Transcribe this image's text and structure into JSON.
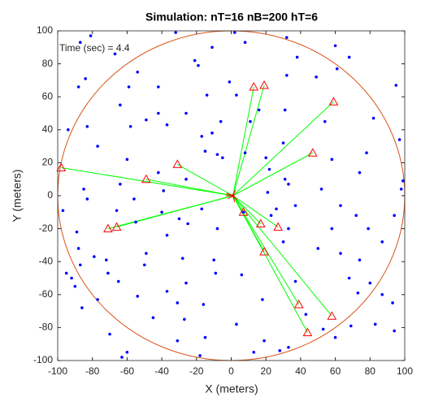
{
  "chart_data": {
    "type": "scatter",
    "title": "Simulation: nT=16  nB=200  hT=6",
    "xlabel": "X (meters)",
    "ylabel": "Y (meters)",
    "annotation": "Time (sec) = 4.4",
    "xlim": [
      -100,
      100
    ],
    "ylim": [
      -100,
      100
    ],
    "xticks": [
      -100,
      -80,
      -60,
      -40,
      -20,
      0,
      20,
      40,
      60,
      80,
      100
    ],
    "yticks": [
      -100,
      -80,
      -60,
      -40,
      -20,
      0,
      20,
      40,
      60,
      80,
      100
    ],
    "grid": false,
    "circle": {
      "radius": 100,
      "color": "#d95319"
    },
    "center": {
      "x": 1,
      "y": 0,
      "color": "#ff0000"
    },
    "link_color": "#00ff00",
    "series": [
      {
        "color": "#0000ff",
        "marker": "dot",
        "x": [
          -81,
          -87,
          -32,
          2,
          -11,
          8,
          32,
          60,
          68,
          38,
          -21,
          -19,
          -67,
          -88,
          -84,
          -54,
          -59,
          -1,
          32,
          95,
          49,
          61,
          -42,
          -14,
          3,
          31,
          -64,
          -49,
          -37,
          -42,
          -26,
          -6,
          16,
          54,
          82,
          -94,
          -83,
          -58,
          -17,
          -11,
          11,
          30,
          97,
          -77,
          -60,
          -15,
          -42,
          -8,
          -5,
          20,
          78,
          58,
          74,
          -85,
          -83,
          -64,
          -56,
          -39,
          -26,
          22,
          31,
          99,
          98,
          -97,
          -66,
          -40,
          -30,
          -17,
          26,
          37,
          52,
          72,
          94,
          63,
          -89,
          -55,
          -37,
          -25,
          -8,
          23,
          33,
          58,
          79,
          87,
          -88,
          -79,
          -72,
          -49,
          -28,
          -10,
          30,
          50,
          63,
          74,
          -95,
          -87,
          -71,
          -65,
          -50,
          -26,
          -9,
          6,
          37,
          68,
          80,
          87,
          -90,
          -86,
          -77,
          -54,
          -45,
          -37,
          -16,
          18,
          43,
          73,
          93,
          -70,
          -63,
          -60,
          -31,
          -15,
          19,
          28,
          33,
          53,
          69,
          83,
          94,
          -18,
          60,
          -92,
          21,
          7,
          33,
          8,
          -31,
          -27,
          3,
          13
        ],
        "values": [
          97,
          93,
          99,
          99,
          90,
          93,
          96,
          91,
          84,
          84,
          82,
          79,
          86,
          66,
          71,
          75,
          66,
          69,
          73,
          67,
          72,
          77,
          66,
          61,
          61,
          52,
          55,
          46,
          43,
          50,
          50,
          45,
          52,
          45,
          47,
          40,
          42,
          42,
          36,
          38,
          45,
          32,
          34,
          30,
          22,
          27,
          14,
          25,
          23,
          23,
          26,
          22,
          14,
          4,
          -2,
          7,
          -2,
          3,
          10,
          16,
          10,
          9,
          4,
          -9,
          -9,
          -10,
          -14,
          -8,
          -8,
          -6,
          4,
          -12,
          -12,
          -6,
          -22,
          -16,
          -24,
          -17,
          -20,
          -12,
          -20,
          -20,
          -20,
          -28,
          -32,
          -37,
          -39,
          -35,
          -38,
          -39,
          -28,
          -32,
          -35,
          -39,
          -47,
          -42,
          -47,
          -52,
          -42,
          -53,
          -47,
          -48,
          -52,
          -50,
          -53,
          -60,
          -55,
          -68,
          -63,
          -61,
          -74,
          -58,
          -66,
          -63,
          -72,
          -59,
          -65,
          -84,
          -98,
          -95,
          -88,
          -86,
          -88,
          -94,
          -92,
          -81,
          -79,
          -78,
          -82,
          -97,
          -86,
          -50,
          2,
          -10,
          7,
          26,
          -65,
          -75,
          -78,
          -95
        ]
      },
      {
        "color": "#ff0000",
        "marker": "triangle",
        "x": [
          13,
          19,
          59,
          47,
          -31,
          -49,
          -98,
          -66,
          -71,
          7,
          17,
          27,
          19,
          39,
          58,
          44
        ],
        "values": [
          66,
          67,
          57,
          26,
          19,
          10,
          17,
          -19,
          -20,
          -10,
          -17,
          -19,
          -34,
          -66,
          -73,
          -83
        ]
      }
    ]
  }
}
